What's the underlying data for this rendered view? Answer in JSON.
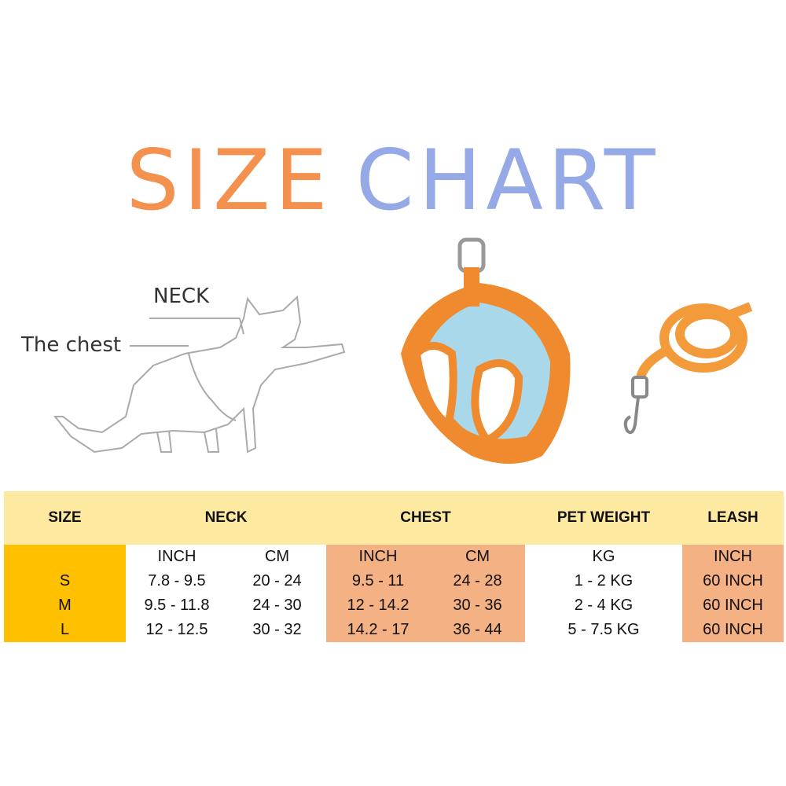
{
  "title": {
    "word1": "SIZE",
    "word2": "CHART"
  },
  "colors": {
    "title_orange": "#F5914E",
    "title_blue": "#94A9E6",
    "header_bg": "#FDE9A0",
    "size_col": "#FFC000",
    "peach": "#F4B183",
    "harness_orange": "#F08A2E",
    "harness_mesh": "#A9D8EA"
  },
  "diagram": {
    "neck_label": "NECK",
    "chest_label": "The chest"
  },
  "table": {
    "headers": [
      "SIZE",
      "NECK",
      "CHEST",
      "PET WEIGHT",
      "LEASH"
    ],
    "units": [
      "INCH",
      "CM",
      "INCH",
      "CM",
      "KG",
      "INCH"
    ],
    "rows": [
      {
        "size": "S",
        "neck_in": "7.8 - 9.5",
        "neck_cm": "20 - 24",
        "chest_in": "9.5 - 11",
        "chest_cm": "24 - 28",
        "weight": "1 - 2 KG",
        "leash": "60 INCH"
      },
      {
        "size": "M",
        "neck_in": "9.5 - 11.8",
        "neck_cm": "24 - 30",
        "chest_in": "12 - 14.2",
        "chest_cm": "30 - 36",
        "weight": "2 - 4 KG",
        "leash": "60 INCH"
      },
      {
        "size": "L",
        "neck_in": "12 - 12.5",
        "neck_cm": "30 - 32",
        "chest_in": "14.2 - 17",
        "chest_cm": "36 - 44",
        "weight": "5 - 7.5 KG",
        "leash": "60 INCH"
      }
    ]
  }
}
